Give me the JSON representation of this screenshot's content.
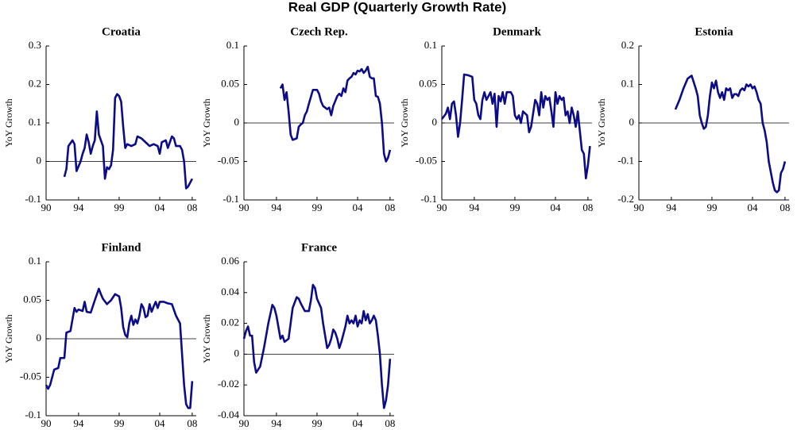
{
  "title": "Real GDP (Quarterly Growth Rate)",
  "chart_data": [
    {
      "type": "line",
      "title": "Croatia",
      "ylabel": "YoY Growth",
      "color": "#0c0c86",
      "hline": 0,
      "xlim": [
        1990,
        2008.5
      ],
      "xticks": [
        {
          "value": 1990,
          "label": "90"
        },
        {
          "value": 1994,
          "label": "94"
        },
        {
          "value": 1999,
          "label": "99"
        },
        {
          "value": 2004,
          "label": "04"
        },
        {
          "value": 2008,
          "label": "08"
        }
      ],
      "ylim": [
        -0.1,
        0.3
      ],
      "yticks": [
        -0.1,
        0,
        0.1,
        0.2,
        0.3
      ],
      "x": [
        1992.25,
        1992.5,
        1992.75,
        1993.25,
        1993.5,
        1993.75,
        1994.25,
        1994.5,
        1994.75,
        1995,
        1995.25,
        1995.5,
        1995.75,
        1996,
        1996.25,
        1996.5,
        1996.75,
        1997,
        1997.25,
        1997.5,
        1997.75,
        1998,
        1998.25,
        1998.5,
        1998.75,
        1999,
        1999.25,
        1999.5,
        1999.75,
        2000,
        2000.5,
        2001,
        2001.25,
        2001.75,
        2002.25,
        2002.75,
        2003.25,
        2003.75,
        2004,
        2004.25,
        2004.75,
        2005,
        2005.5,
        2005.75,
        2006,
        2006.5,
        2006.75,
        2007,
        2007.25,
        2007.5,
        2007.75,
        2008
      ],
      "values": [
        -0.04,
        -0.02,
        0.04,
        0.055,
        0.045,
        -0.025,
        0.0,
        0.02,
        0.035,
        0.07,
        0.05,
        0.02,
        0.04,
        0.055,
        0.13,
        0.07,
        0.055,
        0.04,
        -0.045,
        -0.015,
        -0.02,
        -0.01,
        0.03,
        0.165,
        0.175,
        0.17,
        0.155,
        0.09,
        0.035,
        0.045,
        0.04,
        0.045,
        0.065,
        0.06,
        0.05,
        0.04,
        0.045,
        0.04,
        0.02,
        0.05,
        0.055,
        0.035,
        0.065,
        0.06,
        0.04,
        0.04,
        0.03,
        0.0,
        -0.07,
        -0.065,
        -0.055,
        -0.045
      ]
    },
    {
      "type": "line",
      "title": "Czech Rep.",
      "ylabel": "YoY Growth",
      "color": "#0c0c86",
      "hline": 0,
      "xlim": [
        1990,
        2008.5
      ],
      "xticks": [
        {
          "value": 1990,
          "label": "90"
        },
        {
          "value": 1994,
          "label": "94"
        },
        {
          "value": 1999,
          "label": "99"
        },
        {
          "value": 2004,
          "label": "04"
        },
        {
          "value": 2008,
          "label": "08"
        }
      ],
      "ylim": [
        -0.1,
        0.1
      ],
      "yticks": [
        -0.1,
        -0.05,
        0,
        0.05,
        0.1
      ],
      "x": [
        1994.5,
        1994.75,
        1995,
        1995.25,
        1995.5,
        1995.75,
        1996,
        1996.5,
        1996.75,
        1997,
        1997.25,
        1997.5,
        1997.75,
        1998,
        1998.5,
        1999,
        1999.25,
        1999.5,
        1999.75,
        2000.25,
        2000.5,
        2000.75,
        2001,
        2001.5,
        2001.75,
        2002,
        2002.25,
        2002.5,
        2002.75,
        2003,
        2003.25,
        2003.5,
        2003.75,
        2004,
        2004.25,
        2004.5,
        2004.75,
        2005,
        2005.25,
        2005.5,
        2005.75,
        2006,
        2006.25,
        2006.5,
        2006.75,
        2007,
        2007.25,
        2007.5,
        2007.75,
        2008
      ],
      "values": [
        0.045,
        0.05,
        0.03,
        0.04,
        0.015,
        -0.015,
        -0.022,
        -0.02,
        -0.005,
        -0.002,
        0.0,
        0.01,
        0.015,
        0.025,
        0.043,
        0.043,
        0.038,
        0.028,
        0.022,
        0.018,
        0.02,
        0.01,
        0.022,
        0.035,
        0.038,
        0.035,
        0.045,
        0.04,
        0.055,
        0.058,
        0.06,
        0.065,
        0.063,
        0.068,
        0.067,
        0.07,
        0.065,
        0.068,
        0.073,
        0.06,
        0.058,
        0.058,
        0.035,
        0.034,
        0.025,
        0.0,
        -0.04,
        -0.05,
        -0.045,
        -0.035
      ]
    },
    {
      "type": "line",
      "title": "Denmark",
      "ylabel": "YoY Growth",
      "color": "#0c0c86",
      "hline": 0,
      "xlim": [
        1990,
        2008.5
      ],
      "xticks": [
        {
          "value": 1990,
          "label": "90"
        },
        {
          "value": 1994,
          "label": "94"
        },
        {
          "value": 1999,
          "label": "99"
        },
        {
          "value": 2004,
          "label": "04"
        },
        {
          "value": 2008,
          "label": "08"
        }
      ],
      "ylim": [
        -0.1,
        0.1
      ],
      "yticks": [
        -0.1,
        -0.05,
        0,
        0.05,
        0.1
      ],
      "x": [
        1990,
        1990.5,
        1990.75,
        1991,
        1991.25,
        1991.5,
        1991.75,
        1992,
        1992.25,
        1992.5,
        1992.75,
        1993.25,
        1993.75,
        1994,
        1994.25,
        1994.5,
        1994.75,
        1995,
        1995.25,
        1995.5,
        1995.75,
        1996,
        1996.25,
        1996.5,
        1996.75,
        1997,
        1997.25,
        1997.5,
        1997.75,
        1998,
        1998.5,
        1998.75,
        1999,
        1999.25,
        1999.5,
        1999.75,
        2000,
        2000.5,
        2000.75,
        2001,
        2001.5,
        2001.75,
        2002,
        2002.25,
        2002.5,
        2002.75,
        2003,
        2003.25,
        2003.5,
        2003.75,
        2004,
        2004.25,
        2004.5,
        2004.75,
        2005,
        2005.25,
        2005.5,
        2005.75,
        2006,
        2006.25,
        2006.5,
        2006.75,
        2007,
        2007.25,
        2007.5,
        2007.75,
        2008,
        2008.25
      ],
      "values": [
        0.005,
        0.012,
        0.02,
        0.005,
        0.025,
        0.028,
        0.01,
        -0.018,
        0.0,
        0.03,
        0.063,
        0.062,
        0.06,
        0.03,
        0.025,
        0.01,
        0.005,
        0.03,
        0.04,
        0.03,
        0.035,
        0.04,
        0.025,
        0.038,
        -0.005,
        0.035,
        0.028,
        0.04,
        0.025,
        0.04,
        0.04,
        0.035,
        0.01,
        0.005,
        0.01,
        0.0,
        0.015,
        0.01,
        -0.012,
        -0.005,
        0.03,
        0.025,
        0.01,
        0.04,
        0.02,
        0.035,
        0.03,
        0.033,
        0.015,
        -0.005,
        0.04,
        0.025,
        0.035,
        0.03,
        0.033,
        0.01,
        0.015,
        0.0,
        0.02,
        0.01,
        -0.005,
        0.015,
        -0.01,
        -0.035,
        -0.04,
        -0.072,
        -0.055,
        -0.03
      ]
    },
    {
      "type": "line",
      "title": "Estonia",
      "ylabel": "YoY Growth",
      "color": "#0c0c86",
      "hline": 0,
      "xlim": [
        1990,
        2008.5
      ],
      "xticks": [
        {
          "value": 1990,
          "label": "90"
        },
        {
          "value": 1994,
          "label": "94"
        },
        {
          "value": 1999,
          "label": "99"
        },
        {
          "value": 2004,
          "label": "04"
        },
        {
          "value": 2008,
          "label": "08"
        }
      ],
      "ylim": [
        -0.2,
        0.2
      ],
      "yticks": [
        -0.2,
        -0.1,
        0,
        0.1,
        0.2
      ],
      "x": [
        1994.5,
        1995,
        1995.5,
        1996,
        1996.5,
        1997,
        1997.25,
        1997.5,
        1997.75,
        1998,
        1998.25,
        1998.5,
        1998.75,
        1999,
        1999.25,
        1999.5,
        1999.75,
        2000,
        2000.25,
        2000.5,
        2000.75,
        2001,
        2001.25,
        2001.5,
        2001.75,
        2002,
        2002.25,
        2002.5,
        2002.75,
        2003,
        2003.25,
        2003.5,
        2003.75,
        2004,
        2004.25,
        2004.5,
        2004.75,
        2005,
        2005.25,
        2005.5,
        2005.75,
        2006,
        2006.5,
        2006.75,
        2007,
        2007.25,
        2007.5,
        2007.75,
        2008
      ],
      "values": [
        0.035,
        0.06,
        0.09,
        0.115,
        0.123,
        0.09,
        0.07,
        0.02,
        0.0,
        -0.015,
        -0.01,
        0.02,
        0.07,
        0.105,
        0.09,
        0.11,
        0.08,
        0.065,
        0.08,
        0.06,
        0.09,
        0.085,
        0.09,
        0.065,
        0.075,
        0.075,
        0.07,
        0.085,
        0.09,
        0.085,
        0.1,
        0.095,
        0.1,
        0.09,
        0.095,
        0.08,
        0.06,
        0.05,
        0.0,
        -0.02,
        -0.05,
        -0.1,
        -0.155,
        -0.175,
        -0.18,
        -0.175,
        -0.13,
        -0.12,
        -0.1
      ]
    },
    {
      "type": "line",
      "title": "Finland",
      "ylabel": "YoY Growth",
      "color": "#0c0c86",
      "hline": 0,
      "xlim": [
        1990,
        2008.5
      ],
      "xticks": [
        {
          "value": 1990,
          "label": "90"
        },
        {
          "value": 1994,
          "label": "94"
        },
        {
          "value": 1999,
          "label": "99"
        },
        {
          "value": 2004,
          "label": "04"
        },
        {
          "value": 2008,
          "label": "08"
        }
      ],
      "ylim": [
        -0.1,
        0.1
      ],
      "yticks": [
        -0.1,
        -0.05,
        0,
        0.05,
        0.1
      ],
      "x": [
        1990,
        1990.25,
        1990.5,
        1991,
        1991.5,
        1991.75,
        1992.25,
        1992.5,
        1993,
        1993.5,
        1993.75,
        1994,
        1994.5,
        1994.75,
        1995,
        1995.5,
        1996,
        1996.5,
        1996.75,
        1997,
        1997.5,
        1998,
        1998.5,
        1999,
        1999.25,
        1999.5,
        1999.75,
        2000,
        2000.25,
        2000.5,
        2000.75,
        2001,
        2001.25,
        2001.5,
        2001.75,
        2002,
        2002.25,
        2002.5,
        2002.75,
        2003,
        2003.25,
        2003.5,
        2003.75,
        2004,
        2004.5,
        2005,
        2005.5,
        2006,
        2006.5,
        2006.75,
        2007,
        2007.25,
        2007.5,
        2007.75,
        2008
      ],
      "values": [
        -0.06,
        -0.065,
        -0.06,
        -0.04,
        -0.038,
        -0.025,
        -0.025,
        0.008,
        0.01,
        0.04,
        0.035,
        0.038,
        0.036,
        0.048,
        0.035,
        0.034,
        0.05,
        0.065,
        0.058,
        0.052,
        0.045,
        0.05,
        0.058,
        0.055,
        0.04,
        0.015,
        0.005,
        0.002,
        0.02,
        0.03,
        0.018,
        0.025,
        0.02,
        0.03,
        0.045,
        0.04,
        0.028,
        0.03,
        0.045,
        0.035,
        0.042,
        0.048,
        0.04,
        0.048,
        0.048,
        0.046,
        0.045,
        0.03,
        0.02,
        -0.02,
        -0.06,
        -0.085,
        -0.09,
        -0.09,
        -0.055
      ]
    },
    {
      "type": "line",
      "title": "France",
      "ylabel": "YoY Growth",
      "color": "#0c0c86",
      "hline": 0,
      "xlim": [
        1990,
        2008.5
      ],
      "xticks": [
        {
          "value": 1990,
          "label": "90"
        },
        {
          "value": 1994,
          "label": "94"
        },
        {
          "value": 1999,
          "label": "99"
        },
        {
          "value": 2004,
          "label": "04"
        },
        {
          "value": 2008,
          "label": "08"
        }
      ],
      "ylim": [
        -0.04,
        0.06
      ],
      "yticks": [
        -0.04,
        -0.02,
        0,
        0.02,
        0.04,
        0.06
      ],
      "x": [
        1990,
        1990.25,
        1990.5,
        1990.75,
        1991,
        1991.25,
        1991.5,
        1991.75,
        1992,
        1992.5,
        1993,
        1993.5,
        1993.75,
        1994,
        1994.5,
        1994.75,
        1995,
        1995.5,
        1995.75,
        1996,
        1996.5,
        1996.75,
        1997,
        1997.5,
        1998,
        1998.25,
        1998.5,
        1998.75,
        1999,
        1999.5,
        1999.75,
        2000.25,
        2000.5,
        2000.75,
        2001,
        2001.25,
        2001.5,
        2001.75,
        2002,
        2002.5,
        2002.75,
        2003,
        2003.25,
        2003.5,
        2003.75,
        2004,
        2004.25,
        2004.5,
        2004.75,
        2005,
        2005.25,
        2005.5,
        2005.75,
        2006,
        2006.25,
        2006.5,
        2006.75,
        2007,
        2007.25,
        2007.5,
        2007.75,
        2008
      ],
      "values": [
        0.01,
        0.015,
        0.018,
        0.012,
        0.012,
        -0.005,
        -0.012,
        -0.01,
        -0.008,
        0.005,
        0.02,
        0.032,
        0.03,
        0.025,
        0.01,
        0.012,
        0.008,
        0.01,
        0.02,
        0.03,
        0.037,
        0.036,
        0.033,
        0.028,
        0.028,
        0.035,
        0.045,
        0.043,
        0.036,
        0.03,
        0.02,
        0.004,
        0.006,
        0.01,
        0.016,
        0.014,
        0.01,
        0.004,
        0.008,
        0.018,
        0.025,
        0.02,
        0.022,
        0.02,
        0.025,
        0.018,
        0.022,
        0.02,
        0.028,
        0.022,
        0.026,
        0.02,
        0.022,
        0.025,
        0.022,
        0.012,
        0.0,
        -0.02,
        -0.035,
        -0.03,
        -0.02,
        -0.003
      ]
    }
  ]
}
